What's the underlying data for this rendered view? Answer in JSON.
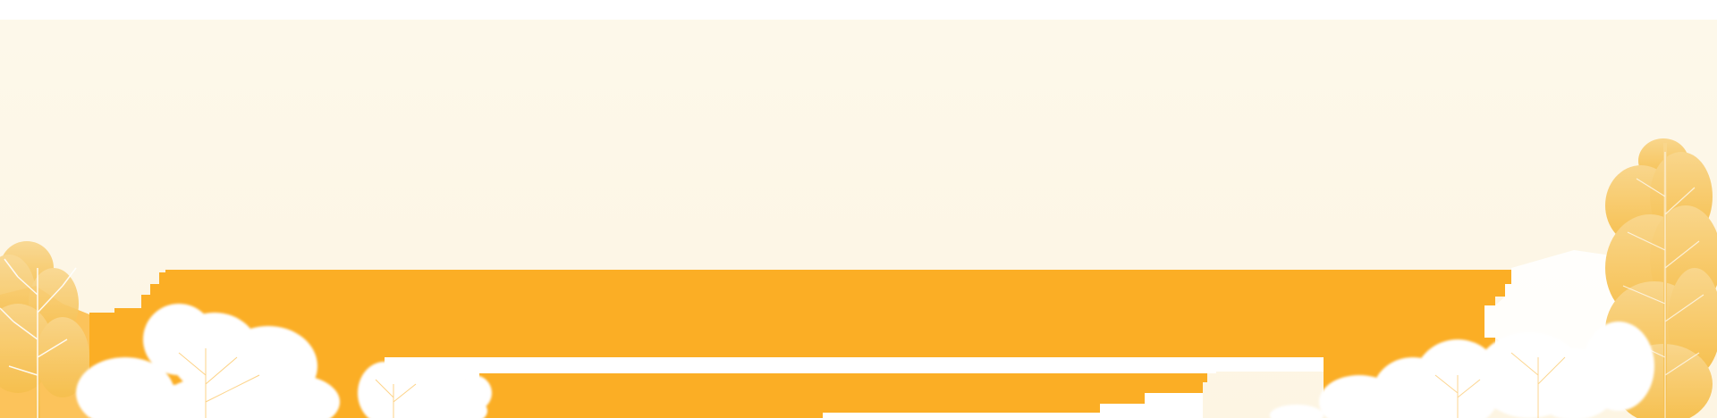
{
  "scene": {
    "description_colors": {
      "sky": "#fdf7e7",
      "band": "#fbae25",
      "light_band": "#fcc35b",
      "tree": "#ffffff",
      "tree_warm": "#f7c86a"
    }
  }
}
